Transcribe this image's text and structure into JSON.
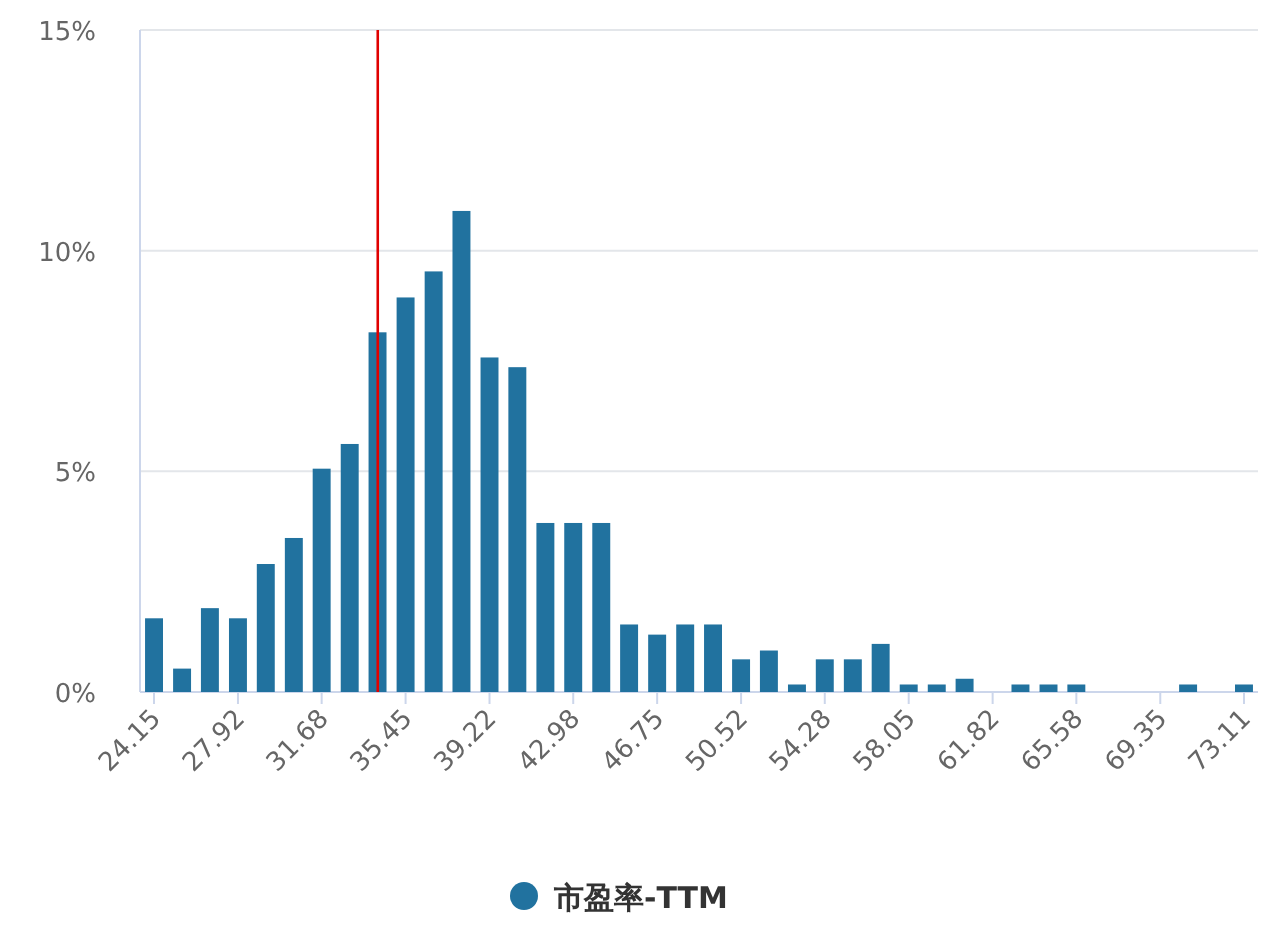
{
  "chart_data": {
    "type": "bar",
    "series": [
      {
        "name": "市盈率-TTM",
        "color": "#21729f",
        "x": [
          24.15,
          25.41,
          26.66,
          27.92,
          29.17,
          30.43,
          31.68,
          32.94,
          34.19,
          35.45,
          36.71,
          37.96,
          39.22,
          40.47,
          41.73,
          42.98,
          44.24,
          45.49,
          46.75,
          48.01,
          49.26,
          50.52,
          51.77,
          53.03,
          54.28,
          55.54,
          56.79,
          58.05,
          59.31,
          60.56,
          61.82,
          63.07,
          64.33,
          65.58,
          66.84,
          68.09,
          69.35,
          70.6,
          71.86,
          73.11
        ],
        "values": [
          1.67,
          0.53,
          1.9,
          1.67,
          2.9,
          3.49,
          5.06,
          5.62,
          8.15,
          8.94,
          9.53,
          10.9,
          7.58,
          7.36,
          3.83,
          3.83,
          3.83,
          1.53,
          1.3,
          1.53,
          1.53,
          0.74,
          0.94,
          0.17,
          0.74,
          0.74,
          1.09,
          0.17,
          0.17,
          0.3,
          0,
          0.17,
          0.17,
          0.17,
          0,
          0,
          0,
          0.17,
          0,
          0.17
        ]
      }
    ],
    "xlim": [
      23.52,
      73.74
    ],
    "xticks": [
      24.15,
      27.92,
      31.68,
      35.45,
      39.22,
      42.98,
      46.75,
      50.52,
      54.28,
      58.05,
      61.82,
      65.58,
      69.35,
      73.11
    ],
    "ylim": [
      0,
      15
    ],
    "yticks": [
      {
        "value": 0,
        "label": "0%"
      },
      {
        "value": 5,
        "label": "5%"
      },
      {
        "value": 10,
        "label": "10%"
      },
      {
        "value": 15,
        "label": "15%"
      }
    ],
    "grid": "y",
    "ref_lines": [
      {
        "axis": "x",
        "value": 34.2,
        "color": "#e00000"
      }
    ],
    "legend": "bottom"
  }
}
